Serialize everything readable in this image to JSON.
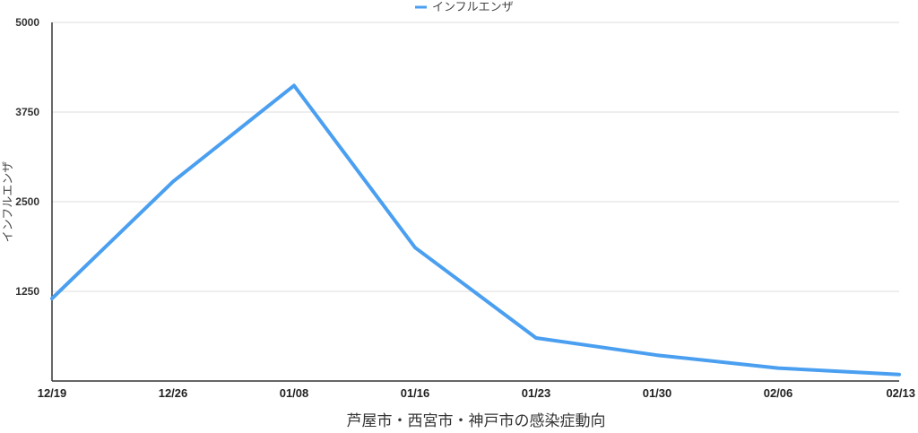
{
  "chart_data": {
    "type": "line",
    "xlabel": "芦屋市・西宮市・神戸市の感染症動向",
    "ylabel": "インフルエンザ",
    "categories": [
      "12/19",
      "12/26",
      "01/08",
      "01/16",
      "01/23",
      "01/30",
      "02/06",
      "02/13"
    ],
    "yticks": [
      "5000",
      "3750",
      "2500",
      "1250"
    ],
    "ylim": [
      0,
      5000
    ],
    "grid": true,
    "legend_position": "top-center",
    "series": [
      {
        "name": "インフルエンザ",
        "color": "#4a9ff0",
        "values": [
          1150,
          2780,
          4120,
          1860,
          600,
          360,
          180,
          90
        ]
      }
    ]
  }
}
